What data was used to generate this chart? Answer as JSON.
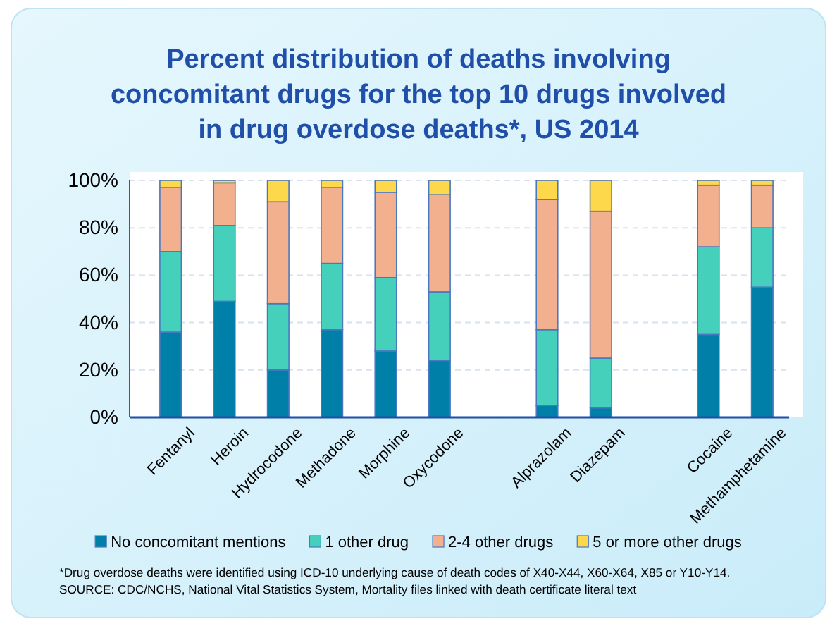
{
  "chart_data": {
    "type": "bar",
    "stacked": true,
    "title": "Percent distribution of deaths involving concomitant drugs for the top 10 drugs involved in drug overdose deaths*, US 2014",
    "categories": [
      "Fentanyl",
      "Heroin",
      "Hydrocodone",
      "Methadone",
      "Morphine",
      "Oxycodone",
      null,
      "Alprazolam",
      "Diazepam",
      null,
      "Cocaine",
      "Methamphetamine"
    ],
    "series": [
      {
        "name": "No concomitant mentions",
        "color": "#0080a8",
        "values": [
          36,
          49,
          20,
          37,
          28,
          24,
          null,
          5,
          4,
          null,
          35,
          55
        ]
      },
      {
        "name": "1 other drug",
        "color": "#45d0bc",
        "values": [
          34,
          32,
          28,
          28,
          31,
          29,
          null,
          32,
          21,
          null,
          37,
          25
        ]
      },
      {
        "name": "2-4 other drugs",
        "color": "#f2b08f",
        "values": [
          27,
          18,
          43,
          32,
          36,
          41,
          null,
          55,
          62,
          null,
          26,
          18
        ]
      },
      {
        "name": "5 or more other drugs",
        "color": "#fdd84a",
        "values": [
          3,
          1,
          9,
          3,
          5,
          6,
          null,
          8,
          13,
          null,
          2,
          2
        ]
      }
    ],
    "ylim": [
      0,
      100
    ],
    "yticks": [
      {
        "value": 0,
        "label": "0%"
      },
      {
        "value": 20,
        "label": "20%"
      },
      {
        "value": 40,
        "label": "40%"
      },
      {
        "value": 60,
        "label": "60%"
      },
      {
        "value": 80,
        "label": "80%"
      },
      {
        "value": 100,
        "label": "100%"
      }
    ],
    "grid": "y",
    "legend": "bottom",
    "annotations": [
      "*Drug overdose deaths were identified using ICD-10 underlying cause of death codes of X40-X44, X60-X64, X85 or Y10-Y14.",
      "SOURCE: CDC/NCHS, National Vital Statistics System, Mortality files linked with death certificate literal text"
    ]
  }
}
